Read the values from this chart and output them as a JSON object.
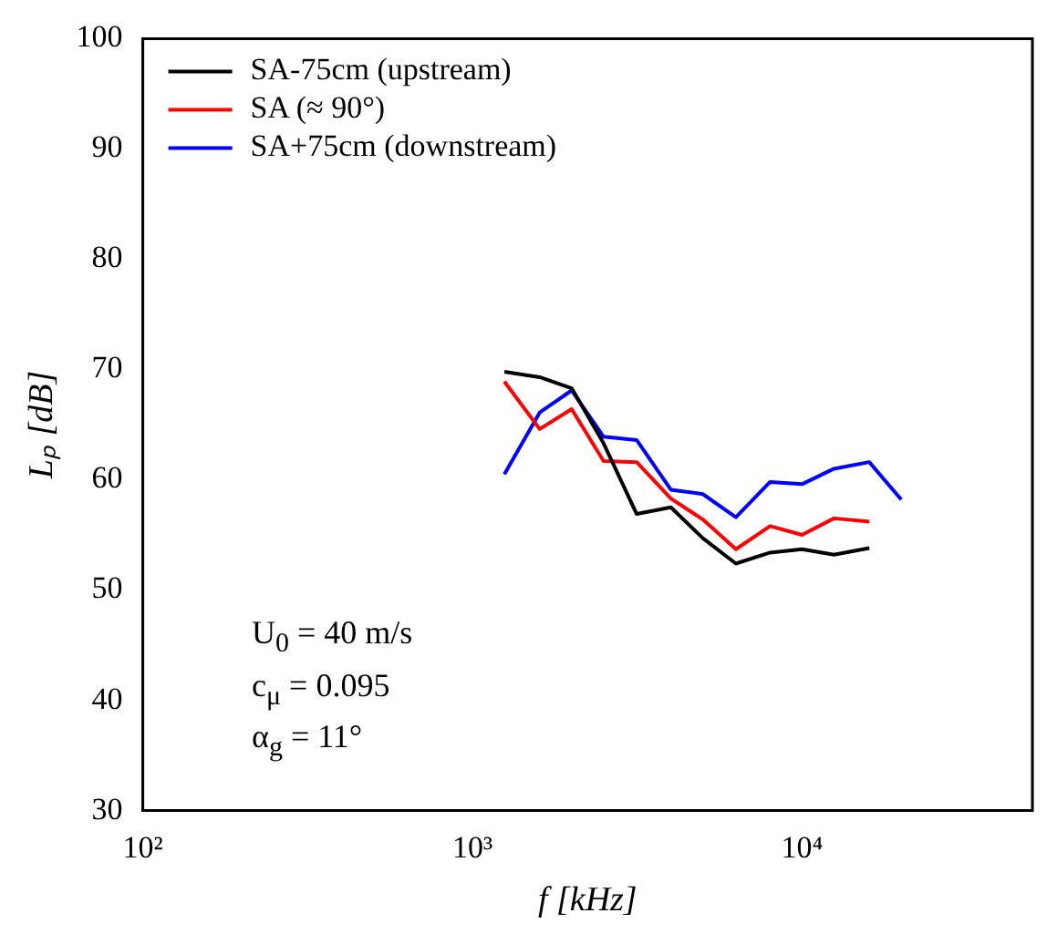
{
  "chart_data": {
    "type": "line",
    "xlabel": "f [kHz]",
    "ylabel": "Lₚ [dB]",
    "x": [
      1250,
      1600,
      2000,
      2500,
      3150,
      4000,
      5000,
      6300,
      8000,
      10000,
      12500,
      16000,
      20000
    ],
    "series": [
      {
        "name": "SA-75cm (upstream)",
        "color": "#000000",
        "values": [
          69.8,
          69.3,
          68.3,
          63.3,
          56.9,
          57.5,
          54.7,
          52.4,
          53.4,
          53.7,
          53.2,
          53.8,
          null
        ]
      },
      {
        "name": "SA (≈ 90°)",
        "color": "#ff0000",
        "values": [
          68.9,
          64.6,
          66.4,
          61.7,
          61.6,
          58.3,
          56.4,
          53.7,
          55.8,
          55.0,
          56.5,
          56.2,
          null
        ]
      },
      {
        "name": "SA+75cm (downstream)",
        "color": "#0000ff",
        "values": [
          60.5,
          66.1,
          68.1,
          63.9,
          63.6,
          59.1,
          58.7,
          56.6,
          59.8,
          59.6,
          61.0,
          61.6,
          58.2
        ]
      }
    ],
    "log": "x",
    "xlim": [
      100,
      50000
    ],
    "xticks": [
      {
        "value": 100,
        "label": "10²"
      },
      {
        "value": 1000,
        "label": "10³"
      },
      {
        "value": 10000,
        "label": "10⁴"
      }
    ],
    "ylim": [
      30,
      100
    ],
    "yticks": [
      30,
      40,
      50,
      60,
      70,
      80,
      90,
      100
    ],
    "legend": "top left",
    "annotations": [
      "U$_{0}$ = 40 m/s",
      "c$_{μ}$ = 0.095",
      "α$_{g}$ = 11°"
    ]
  }
}
